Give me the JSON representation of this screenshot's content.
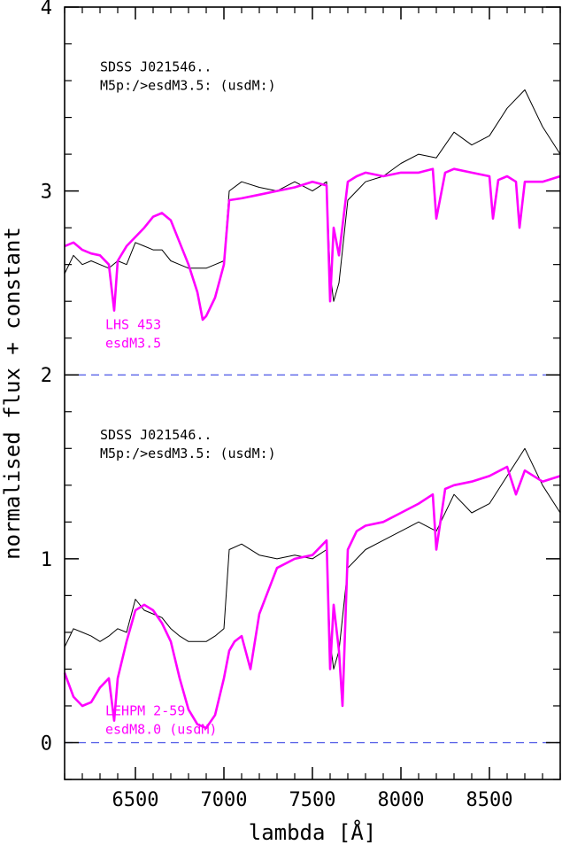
{
  "chart_data": {
    "type": "line",
    "title": "",
    "xlabel": "lambda [Å]",
    "ylabel": "normalised flux + constant",
    "xlim": [
      6100,
      8900
    ],
    "ylim": [
      -0.2,
      4.0
    ],
    "x_ticks": [
      6500,
      7000,
      7500,
      8000,
      8500
    ],
    "y_ticks": [
      0,
      1,
      2,
      3,
      4
    ],
    "reference_lines": [
      {
        "y": 2,
        "color": "#4b55e6",
        "style": "dashed"
      },
      {
        "y": 0,
        "color": "#4b55e6",
        "style": "dashed"
      }
    ],
    "colors": {
      "target": "#000000",
      "template": "#ff00ff",
      "reference": "#4b55e6"
    },
    "annotations": [
      {
        "lines": [
          "SDSS J021546..",
          "M5p:/>esdM3.5: (usdM:)"
        ],
        "color": "#000000",
        "anchor_x": 6300,
        "anchor_y": 3.65
      },
      {
        "lines": [
          "LHS 453",
          "esdM3.5"
        ],
        "color": "#ff00ff",
        "anchor_x": 6330,
        "anchor_y": 2.25
      },
      {
        "lines": [
          "SDSS J021546..",
          "M5p:/>esdM3.5: (usdM:)"
        ],
        "color": "#000000",
        "anchor_x": 6300,
        "anchor_y": 1.65
      },
      {
        "lines": [
          "LEHPM 2-59",
          "esdM8.0 (usdM)"
        ],
        "color": "#ff00ff",
        "anchor_x": 6330,
        "anchor_y": 0.15
      }
    ],
    "series": [
      {
        "color": "#000000",
        "offset": 2,
        "x": [
          6100,
          6150,
          6200,
          6250,
          6300,
          6350,
          6400,
          6450,
          6500,
          6550,
          6600,
          6650,
          6700,
          6750,
          6800,
          6850,
          6900,
          6950,
          7000,
          7030,
          7100,
          7200,
          7300,
          7400,
          7500,
          7580,
          7600,
          7620,
          7650,
          7700,
          7750,
          7800,
          7900,
          8000,
          8100,
          8200,
          8300,
          8400,
          8500,
          8600,
          8700,
          8800,
          8900
        ],
        "y": [
          0.55,
          0.65,
          0.6,
          0.62,
          0.6,
          0.58,
          0.62,
          0.6,
          0.72,
          0.7,
          0.68,
          0.68,
          0.62,
          0.6,
          0.58,
          0.58,
          0.58,
          0.6,
          0.62,
          1.0,
          1.05,
          1.02,
          1.0,
          1.05,
          1.0,
          1.05,
          0.55,
          0.4,
          0.5,
          0.95,
          1.0,
          1.05,
          1.08,
          1.15,
          1.2,
          1.18,
          1.32,
          1.25,
          1.3,
          1.45,
          1.55,
          1.35,
          1.2
        ]
      },
      {
        "color": "#ff00ff",
        "offset": 2,
        "x": [
          6100,
          6150,
          6200,
          6250,
          6300,
          6350,
          6380,
          6400,
          6450,
          6500,
          6550,
          6600,
          6650,
          6700,
          6750,
          6800,
          6850,
          6880,
          6900,
          6950,
          7000,
          7030,
          7100,
          7200,
          7300,
          7400,
          7500,
          7580,
          7600,
          7620,
          7650,
          7700,
          7750,
          7800,
          7900,
          8000,
          8100,
          8180,
          8200,
          8250,
          8300,
          8400,
          8500,
          8520,
          8550,
          8600,
          8650,
          8670,
          8700,
          8800,
          8900
        ],
        "y": [
          0.7,
          0.72,
          0.68,
          0.66,
          0.65,
          0.6,
          0.35,
          0.62,
          0.7,
          0.75,
          0.8,
          0.86,
          0.88,
          0.84,
          0.72,
          0.6,
          0.45,
          0.3,
          0.32,
          0.42,
          0.6,
          0.95,
          0.96,
          0.98,
          1.0,
          1.02,
          1.05,
          1.03,
          0.4,
          0.8,
          0.65,
          1.05,
          1.08,
          1.1,
          1.08,
          1.1,
          1.1,
          1.12,
          0.85,
          1.1,
          1.12,
          1.1,
          1.08,
          0.85,
          1.06,
          1.08,
          1.05,
          0.8,
          1.05,
          1.05,
          1.08
        ]
      },
      {
        "color": "#000000",
        "offset": 0,
        "x": [
          6100,
          6150,
          6200,
          6250,
          6300,
          6350,
          6400,
          6450,
          6500,
          6550,
          6600,
          6650,
          6700,
          6750,
          6800,
          6850,
          6900,
          6950,
          7000,
          7030,
          7100,
          7200,
          7300,
          7400,
          7500,
          7580,
          7600,
          7620,
          7650,
          7700,
          7750,
          7800,
          7900,
          8000,
          8100,
          8200,
          8300,
          8400,
          8500,
          8600,
          8700,
          8800,
          8900
        ],
        "y": [
          0.52,
          0.62,
          0.6,
          0.58,
          0.55,
          0.58,
          0.62,
          0.6,
          0.78,
          0.72,
          0.7,
          0.68,
          0.62,
          0.58,
          0.55,
          0.55,
          0.55,
          0.58,
          0.62,
          1.05,
          1.08,
          1.02,
          1.0,
          1.02,
          1.0,
          1.05,
          0.55,
          0.4,
          0.5,
          0.95,
          1.0,
          1.05,
          1.1,
          1.15,
          1.2,
          1.15,
          1.35,
          1.25,
          1.3,
          1.45,
          1.6,
          1.4,
          1.25
        ]
      },
      {
        "color": "#ff00ff",
        "offset": 0,
        "x": [
          6100,
          6150,
          6200,
          6250,
          6300,
          6350,
          6380,
          6400,
          6450,
          6500,
          6550,
          6600,
          6650,
          6700,
          6750,
          6800,
          6850,
          6900,
          6950,
          7000,
          7030,
          7060,
          7100,
          7150,
          7200,
          7300,
          7400,
          7500,
          7580,
          7600,
          7620,
          7650,
          7670,
          7700,
          7750,
          7800,
          7900,
          8000,
          8100,
          8180,
          8200,
          8250,
          8300,
          8400,
          8500,
          8600,
          8650,
          8700,
          8800,
          8900
        ],
        "y": [
          0.38,
          0.25,
          0.2,
          0.22,
          0.3,
          0.35,
          0.12,
          0.35,
          0.55,
          0.72,
          0.75,
          0.72,
          0.65,
          0.55,
          0.35,
          0.18,
          0.1,
          0.08,
          0.15,
          0.35,
          0.5,
          0.55,
          0.58,
          0.4,
          0.7,
          0.95,
          1.0,
          1.02,
          1.1,
          0.4,
          0.75,
          0.5,
          0.2,
          1.05,
          1.15,
          1.18,
          1.2,
          1.25,
          1.3,
          1.35,
          1.05,
          1.38,
          1.4,
          1.42,
          1.45,
          1.5,
          1.35,
          1.48,
          1.42,
          1.45
        ]
      }
    ]
  }
}
